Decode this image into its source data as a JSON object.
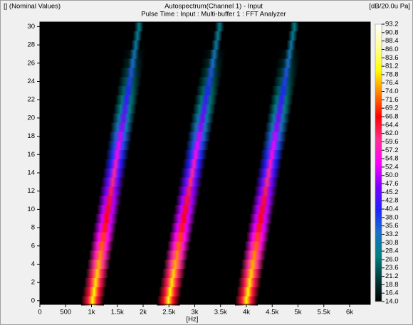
{
  "chart_data": {
    "type": "spectrogram",
    "header_left": "[] (Nominal Values)",
    "title": "Autospectrum(Channel 1) - Input",
    "subtitle": "Pulse Time : Input : Multi-buffer 1 : FFT Analyzer",
    "unit_label": "[dB/20.0u Pa]",
    "x_label": "[Hz]",
    "xlim": [
      0,
      6400
    ],
    "xticks": [
      0,
      500,
      {
        "value": 1000,
        "label": "1k"
      },
      {
        "value": 1500,
        "label": "1.5k"
      },
      {
        "value": 2000,
        "label": "2k"
      },
      {
        "value": 2500,
        "label": "2.5k"
      },
      {
        "value": 3000,
        "label": "3k"
      },
      {
        "value": 3500,
        "label": "3.5k"
      },
      {
        "value": 4000,
        "label": "4k"
      },
      {
        "value": 4500,
        "label": "4.5k"
      },
      {
        "value": 5000,
        "label": "5k"
      },
      {
        "value": 5500,
        "label": "5.5k"
      },
      {
        "value": 6000,
        "label": "6k"
      }
    ],
    "ylim": [
      -0.4,
      30.5
    ],
    "yticks": [
      0,
      2,
      4,
      6,
      8,
      10,
      12,
      14,
      16,
      18,
      20,
      22,
      24,
      26,
      28,
      30
    ],
    "zlim": [
      14,
      93.2
    ],
    "zticks": [
      93.2,
      90.8,
      88.4,
      {
        "value": 86,
        "label": "86.0"
      },
      83.6,
      81.2,
      78.8,
      76.4,
      {
        "value": 74,
        "label": "74.0"
      },
      71.6,
      69.2,
      66.8,
      64.4,
      {
        "value": 62,
        "label": "62.0"
      },
      59.6,
      57.2,
      54.8,
      52.4,
      {
        "value": 50,
        "label": "50.0"
      },
      47.6,
      45.2,
      42.8,
      40.4,
      {
        "value": 38,
        "label": "38.0"
      },
      35.6,
      33.2,
      30.8,
      28.4,
      {
        "value": 26,
        "label": "26.0"
      },
      23.6,
      21.2,
      18.8,
      16.4,
      {
        "value": 14,
        "label": "14.0"
      }
    ],
    "colormap": [
      "#000000",
      "#003c3c",
      "#008080",
      "#1a70c8",
      "#2020ff",
      "#8000ff",
      "#ff00ff",
      "#ff3090",
      "#ff0000",
      "#ff8000",
      "#ffff00",
      "#ffff99",
      "#ffffff"
    ],
    "y": [
      0,
      1,
      2,
      3,
      4,
      5,
      6,
      7,
      8,
      9,
      10,
      11,
      12,
      13,
      14,
      15,
      16,
      17,
      18,
      19,
      20,
      21,
      22,
      23,
      24,
      25,
      26,
      27,
      28,
      29,
      30
    ],
    "streaks": [
      {
        "x": [
          1020,
          1050,
          1080,
          1110,
          1140,
          1170,
          1200,
          1230,
          1260,
          1290,
          1320,
          1350,
          1380,
          1410,
          1440,
          1470,
          1500,
          1530,
          1560,
          1590,
          1620,
          1650,
          1680,
          1710,
          1740,
          1770,
          1800,
          1830,
          1860,
          1890,
          1920
        ],
        "values": [
          80,
          80,
          79,
          78,
          76,
          74,
          72,
          70,
          68,
          67,
          66,
          65,
          63,
          61,
          59,
          57,
          55,
          53,
          51,
          48,
          46,
          44,
          42,
          40,
          38,
          36,
          34,
          32,
          30,
          29,
          28
        ]
      },
      {
        "x": [
          2490,
          2523,
          2556,
          2589,
          2622,
          2655,
          2688,
          2721,
          2754,
          2787,
          2820,
          2853,
          2886,
          2919,
          2952,
          2985,
          3018,
          3051,
          3084,
          3117,
          3150,
          3183,
          3216,
          3249,
          3282,
          3315,
          3348,
          3381,
          3414,
          3447,
          3480
        ],
        "values": [
          81,
          80,
          79,
          78,
          76,
          74,
          72,
          70,
          68,
          67,
          66,
          65,
          63,
          61,
          59,
          57,
          55,
          53,
          51,
          48,
          46,
          44,
          42,
          40,
          38,
          36,
          34,
          32,
          30,
          29,
          28
        ]
      },
      {
        "x": [
          4000,
          4031,
          4062,
          4093,
          4124,
          4155,
          4186,
          4217,
          4248,
          4279,
          4310,
          4341,
          4372,
          4403,
          4434,
          4465,
          4496,
          4527,
          4558,
          4589,
          4620,
          4651,
          4682,
          4713,
          4744,
          4775,
          4806,
          4837,
          4868,
          4899,
          4930
        ],
        "values": [
          80,
          80,
          79,
          78,
          76,
          74,
          72,
          70,
          68,
          67,
          66,
          65,
          63,
          61,
          59,
          57,
          55,
          53,
          51,
          48,
          46,
          44,
          42,
          40,
          38,
          36,
          34,
          32,
          30,
          29,
          28
        ]
      }
    ]
  }
}
